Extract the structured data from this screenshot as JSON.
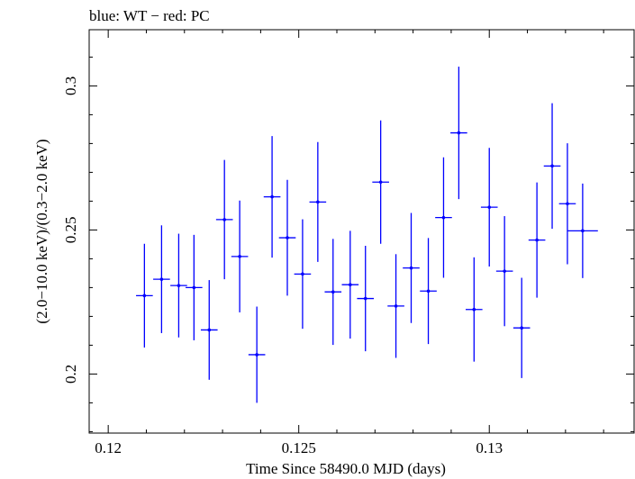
{
  "chart_data": {
    "type": "scatter",
    "title": "blue: WT − red: PC",
    "xlabel": "Time Since 58490.0 MJD (days)",
    "ylabel": "(2.0−10.0 keV)/(0.3−2.0 keV)",
    "xlim": [
      0.1195,
      0.1338
    ],
    "ylim": [
      0.1795,
      0.3195
    ],
    "x_ticks": [
      0.12,
      0.125,
      0.13
    ],
    "x_tick_labels": [
      "0.12",
      "0.125",
      "0.13"
    ],
    "y_ticks": [
      0.2,
      0.25,
      0.3
    ],
    "y_tick_labels": [
      "0.2",
      "0.25",
      "0.3"
    ],
    "series": [
      {
        "color": "#0000ff",
        "points": [
          {
            "x": 0.12095,
            "xerr": 0.00022,
            "y": 0.2272,
            "yerr": 0.018
          },
          {
            "x": 0.1214,
            "xerr": 0.00022,
            "y": 0.2329,
            "yerr": 0.0187
          },
          {
            "x": 0.12185,
            "xerr": 0.00022,
            "y": 0.2307,
            "yerr": 0.018
          },
          {
            "x": 0.12225,
            "xerr": 0.00022,
            "y": 0.23,
            "yerr": 0.0183
          },
          {
            "x": 0.12265,
            "xerr": 0.00022,
            "y": 0.2153,
            "yerr": 0.0173
          },
          {
            "x": 0.12305,
            "xerr": 0.00022,
            "y": 0.2536,
            "yerr": 0.0207
          },
          {
            "x": 0.12345,
            "xerr": 0.00022,
            "y": 0.2408,
            "yerr": 0.0194
          },
          {
            "x": 0.1239,
            "xerr": 0.00022,
            "y": 0.2067,
            "yerr": 0.0167
          },
          {
            "x": 0.1243,
            "xerr": 0.00022,
            "y": 0.2615,
            "yerr": 0.0211
          },
          {
            "x": 0.1247,
            "xerr": 0.00022,
            "y": 0.2473,
            "yerr": 0.0201
          },
          {
            "x": 0.1251,
            "xerr": 0.00022,
            "y": 0.2347,
            "yerr": 0.019
          },
          {
            "x": 0.1255,
            "xerr": 0.00022,
            "y": 0.2597,
            "yerr": 0.0208
          },
          {
            "x": 0.1259,
            "xerr": 0.00022,
            "y": 0.2285,
            "yerr": 0.0184
          },
          {
            "x": 0.12635,
            "xerr": 0.00022,
            "y": 0.231,
            "yerr": 0.0187
          },
          {
            "x": 0.12675,
            "xerr": 0.00022,
            "y": 0.2262,
            "yerr": 0.0183
          },
          {
            "x": 0.12715,
            "xerr": 0.00022,
            "y": 0.2666,
            "yerr": 0.0214
          },
          {
            "x": 0.12755,
            "xerr": 0.00022,
            "y": 0.2236,
            "yerr": 0.018
          },
          {
            "x": 0.12795,
            "xerr": 0.00022,
            "y": 0.2368,
            "yerr": 0.0191
          },
          {
            "x": 0.1284,
            "xerr": 0.00022,
            "y": 0.2288,
            "yerr": 0.0184
          },
          {
            "x": 0.1288,
            "xerr": 0.00022,
            "y": 0.2543,
            "yerr": 0.0209
          },
          {
            "x": 0.1292,
            "xerr": 0.00022,
            "y": 0.2837,
            "yerr": 0.023
          },
          {
            "x": 0.1296,
            "xerr": 0.00022,
            "y": 0.2224,
            "yerr": 0.0181
          },
          {
            "x": 0.13,
            "xerr": 0.00022,
            "y": 0.2579,
            "yerr": 0.0206
          },
          {
            "x": 0.1304,
            "xerr": 0.00022,
            "y": 0.2357,
            "yerr": 0.0191
          },
          {
            "x": 0.13085,
            "xerr": 0.00022,
            "y": 0.216,
            "yerr": 0.0174
          },
          {
            "x": 0.13125,
            "xerr": 0.00022,
            "y": 0.2465,
            "yerr": 0.02
          },
          {
            "x": 0.13165,
            "xerr": 0.00022,
            "y": 0.2722,
            "yerr": 0.0218
          },
          {
            "x": 0.13205,
            "xerr": 0.00022,
            "y": 0.2591,
            "yerr": 0.021
          },
          {
            "x": 0.13245,
            "xerr": 0.0004,
            "y": 0.2497,
            "yerr": 0.0164
          }
        ]
      }
    ]
  }
}
